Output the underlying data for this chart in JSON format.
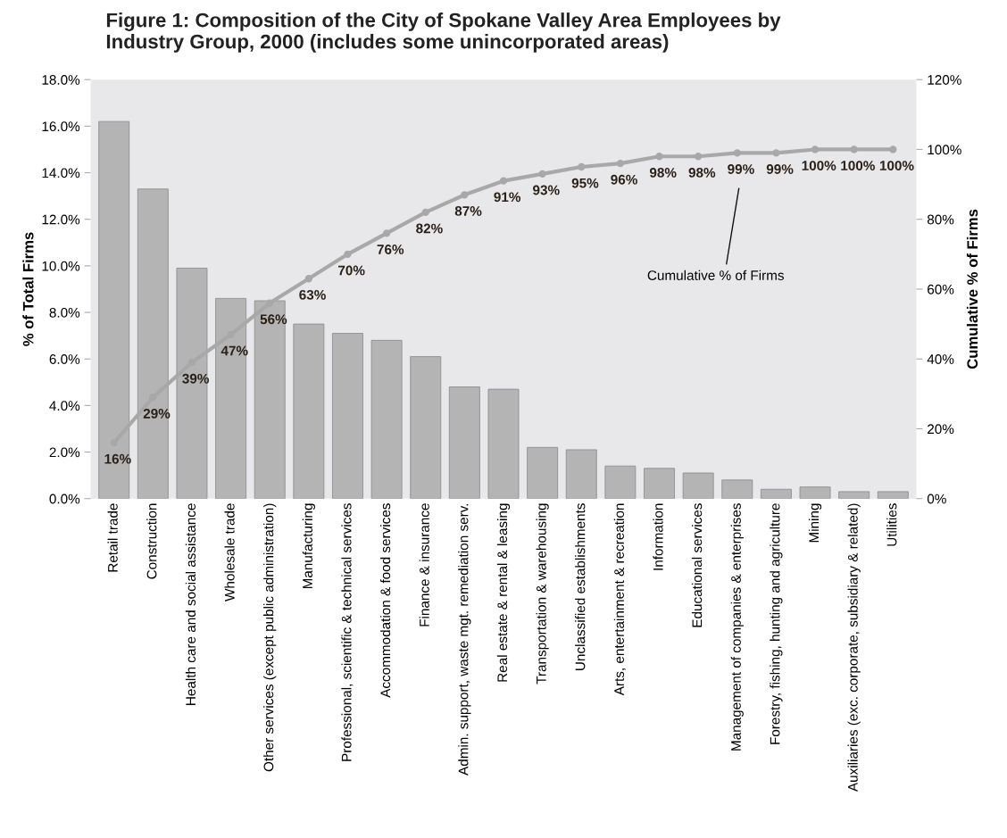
{
  "chart_data": {
    "type": "bar",
    "title": "Figure 1: Composition of the City of Spokane Valley Area Employees by\nIndustry Group, 2000 (includes some unincorporated areas)",
    "ylabel": "% of Total Firms",
    "y2label": "Cumulative % of Firms",
    "categories": [
      "Retail trade",
      "Construction",
      "Health care and social assistance",
      "Wholesale trade",
      "Other services (except public administration)",
      "Manufacturing",
      "Professional, scientific & technical services",
      "Accommodation & food services",
      "Finance & insurance",
      "Admin. support, waste mgt. remediation serv.",
      "Real estate & rental & leasing",
      "Transportation & warehousing",
      "Unclassified establishments",
      "Arts, entertainment & recreation",
      "Information",
      "Educational services",
      "Management of companies & enterprises",
      "Forestry, fishing, hunting and agriculture",
      "Mining",
      "Auxiliaries (exc. corporate, subsidiary & related)",
      "Utilities"
    ],
    "series": [
      {
        "color": "#b4b4b4",
        "values": [
          16.2,
          13.3,
          9.9,
          8.6,
          8.5,
          7.5,
          7.1,
          6.8,
          6.1,
          4.8,
          4.7,
          2.2,
          2.1,
          1.4,
          1.3,
          1.1,
          0.8,
          0.4,
          0.5,
          0.3,
          0.3
        ]
      },
      {
        "type": "line",
        "axis": "y2",
        "color": "#a8a8a8",
        "marker": "circle",
        "values": [
          16,
          29,
          39,
          47,
          56,
          63,
          70,
          76,
          82,
          87,
          91,
          93,
          95,
          96,
          98,
          98,
          99,
          99,
          100,
          100,
          100
        ],
        "value_labels": [
          "16%",
          "29%",
          "39%",
          "47%",
          "56%",
          "63%",
          "70%",
          "76%",
          "82%",
          "87%",
          "91%",
          "93%",
          "95%",
          "96%",
          "98%",
          "98%",
          "99%",
          "99%",
          "100%",
          "100%",
          "100%"
        ]
      }
    ],
    "ylim": [
      0,
      18
    ],
    "yticks": [
      {
        "value": 0,
        "label": "0.0%"
      },
      {
        "value": 2,
        "label": "2.0%"
      },
      {
        "value": 4,
        "label": "4.0%"
      },
      {
        "value": 6,
        "label": "6.0%"
      },
      {
        "value": 8,
        "label": "8.0%"
      },
      {
        "value": 10,
        "label": "10.0%"
      },
      {
        "value": 12,
        "label": "12.0%"
      },
      {
        "value": 14,
        "label": "14.0%"
      },
      {
        "value": 16,
        "label": "16.0%"
      },
      {
        "value": 18,
        "label": "18.0%"
      }
    ],
    "y2lim": [
      0,
      120
    ],
    "y2ticks": [
      {
        "value": 0,
        "label": "0%"
      },
      {
        "value": 20,
        "label": "20%"
      },
      {
        "value": 40,
        "label": "40%"
      },
      {
        "value": 60,
        "label": "60%"
      },
      {
        "value": 80,
        "label": "80%"
      },
      {
        "value": 100,
        "label": "100%"
      },
      {
        "value": 120,
        "label": "120%"
      }
    ],
    "annotations": [
      "Cumulative % of Firms"
    ],
    "grid": false,
    "legend": false
  }
}
